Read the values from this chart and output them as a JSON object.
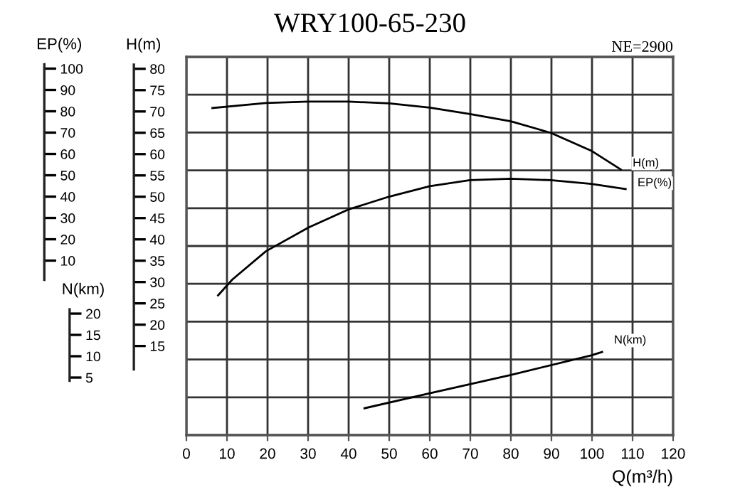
{
  "chart_data": {
    "type": "line",
    "title": "WRY100-65-230",
    "xlabel": "Q(m³/h)",
    "ylabel": "H(m)",
    "y2label": "EP(%)",
    "y3label": "N(km)",
    "annotations": [
      "NE=2900"
    ],
    "xlim": [
      0,
      120
    ],
    "xticks": [
      0,
      10,
      20,
      30,
      40,
      50,
      60,
      70,
      80,
      90,
      100,
      110,
      120
    ],
    "ylim": [
      -5.9,
      82.8
    ],
    "yticks": [
      15,
      20,
      25,
      30,
      35,
      40,
      45,
      50,
      55,
      60,
      65,
      70,
      75,
      80
    ],
    "y2lim": [
      -71.8,
      105.5
    ],
    "y2ticks": [
      10,
      20,
      30,
      40,
      50,
      60,
      70,
      80,
      90,
      100
    ],
    "y3lim": [
      -8.5,
      80.2
    ],
    "y3ticks": [
      5,
      10,
      15,
      20
    ],
    "grid": true,
    "legend": false,
    "marker": "none",
    "line_style": "solid",
    "series": [
      {
        "name": "H(m)",
        "color": "#000000",
        "axis": "y",
        "x": [
          6.4,
          19.6,
          30.1,
          40,
          50,
          60,
          69.9,
          80,
          89.8,
          99.8,
          107.1
        ],
        "values": [
          70.8,
          72.0,
          72.3,
          72.3,
          71.9,
          70.9,
          69.4,
          67.7,
          65.0,
          60.8,
          56.4
        ]
      },
      {
        "name": "EP(%)",
        "color": "#000000",
        "axis": "y2",
        "x": [
          7.8,
          11.3,
          19.6,
          30.1,
          40,
          50,
          60,
          69.9,
          80,
          89.8,
          99.8,
          108.3
        ],
        "values": [
          -6.3,
          1.1,
          14.4,
          25.5,
          34.0,
          40.0,
          44.9,
          47.7,
          48.4,
          47.7,
          46.0,
          43.5
        ]
      },
      {
        "name": "N(km)",
        "color": "#000000",
        "axis": "y3",
        "x": [
          43.9,
          60,
          80,
          99.8,
          102.5
        ],
        "values": [
          -2.2,
          1.3,
          5.6,
          10.2,
          11.0
        ]
      }
    ]
  }
}
